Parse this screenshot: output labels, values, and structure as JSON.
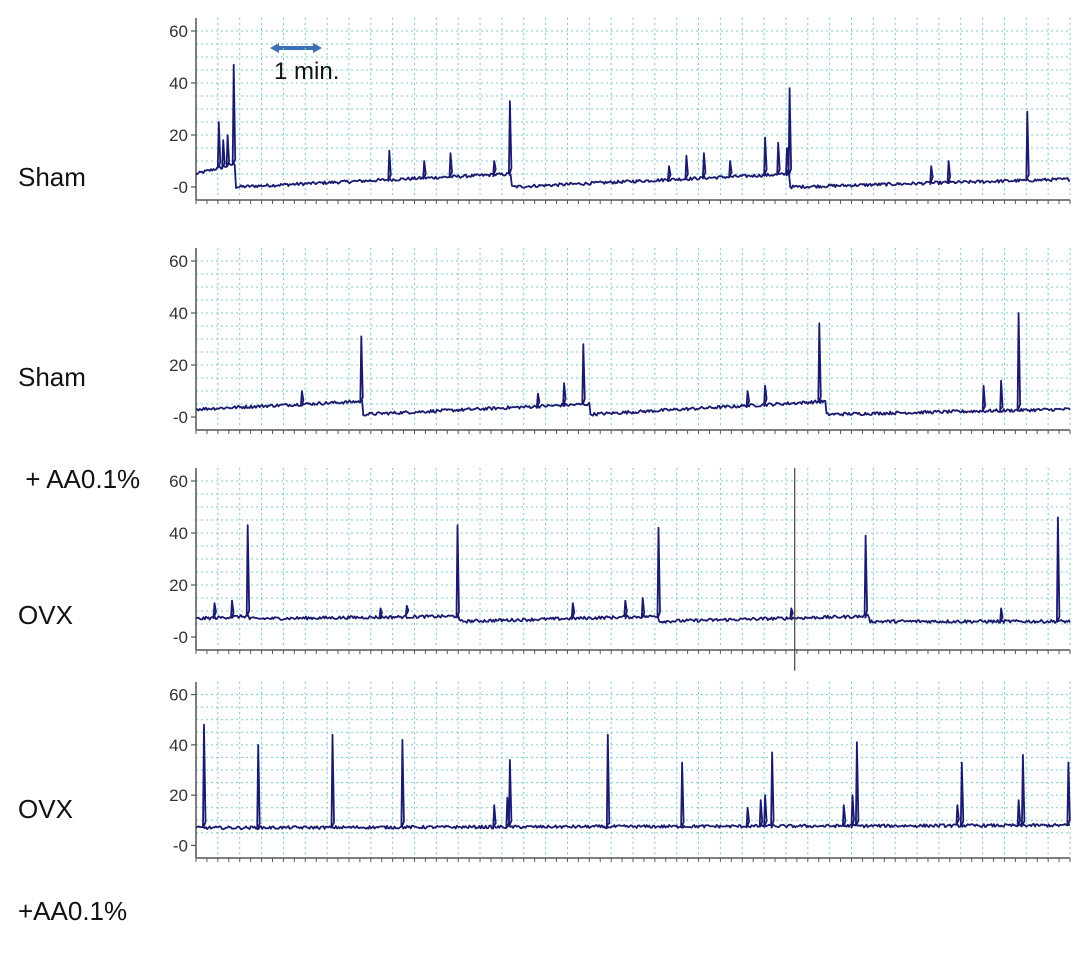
{
  "scale_bar": {
    "label": "1 min."
  },
  "colors": {
    "trace": "#1a1a6e",
    "grid": "#7cc8d0",
    "axis": "#555555",
    "scale_bar": "#3b6fb6"
  },
  "chart_data": [
    {
      "type": "line",
      "label_lines": [
        "Sham"
      ],
      "ylim": [
        -5,
        65
      ],
      "yticks": [
        60,
        40,
        20,
        0
      ],
      "ytick_labels": [
        "60",
        "40",
        "20",
        "-0"
      ],
      "grid": true,
      "baseline": 5,
      "x_end": 10,
      "segments": [
        [
          0,
          0.45,
          5,
          9
        ],
        [
          0.45,
          3.6,
          0,
          5
        ],
        [
          3.6,
          6.8,
          0,
          5
        ],
        [
          6.8,
          10,
          0,
          3
        ]
      ],
      "spikes": [
        [
          0.25,
          25
        ],
        [
          0.3,
          18
        ],
        [
          0.35,
          20
        ],
        [
          0.42,
          47
        ],
        [
          2.2,
          14
        ],
        [
          2.6,
          10
        ],
        [
          2.9,
          13
        ],
        [
          3.4,
          10
        ],
        [
          3.58,
          33
        ],
        [
          5.4,
          8
        ],
        [
          5.6,
          12
        ],
        [
          5.8,
          13
        ],
        [
          6.1,
          10
        ],
        [
          6.5,
          19
        ],
        [
          6.65,
          17
        ],
        [
          6.75,
          15
        ],
        [
          6.78,
          38
        ],
        [
          8.4,
          8
        ],
        [
          8.6,
          10
        ],
        [
          9.5,
          29
        ]
      ]
    },
    {
      "type": "line",
      "label_lines": [
        "Sham",
        " + AA0.1%"
      ],
      "ylim": [
        -5,
        65
      ],
      "yticks": [
        60,
        40,
        20,
        0
      ],
      "ytick_labels": [
        "60",
        "40",
        "20",
        "-0"
      ],
      "grid": true,
      "baseline": 3,
      "x_end": 10,
      "segments": [
        [
          0,
          1.9,
          3,
          6
        ],
        [
          1.9,
          4.5,
          1,
          5
        ],
        [
          4.5,
          7.2,
          1,
          6
        ],
        [
          7.2,
          10,
          1,
          3
        ]
      ],
      "spikes": [
        [
          1.2,
          10
        ],
        [
          1.88,
          31
        ],
        [
          3.9,
          9
        ],
        [
          4.2,
          13
        ],
        [
          4.42,
          28
        ],
        [
          6.3,
          10
        ],
        [
          6.5,
          12
        ],
        [
          7.12,
          36
        ],
        [
          9.0,
          12
        ],
        [
          9.2,
          14
        ],
        [
          9.4,
          40
        ]
      ]
    },
    {
      "type": "line",
      "label_lines": [
        "OVX"
      ],
      "ylim": [
        -5,
        65
      ],
      "yticks": [
        60,
        40,
        20,
        0
      ],
      "ytick_labels": [
        "60",
        "40",
        "20",
        "-0"
      ],
      "grid": true,
      "baseline": 7,
      "x_end": 10,
      "segments": [
        [
          0,
          0.6,
          7,
          8
        ],
        [
          0.6,
          3.0,
          7,
          8
        ],
        [
          3.0,
          5.3,
          6,
          8
        ],
        [
          5.3,
          7.7,
          6,
          8
        ],
        [
          7.7,
          10,
          6,
          6
        ]
      ],
      "spikes": [
        [
          0.2,
          13
        ],
        [
          0.4,
          14
        ],
        [
          0.58,
          43
        ],
        [
          2.1,
          11
        ],
        [
          2.4,
          12
        ],
        [
          2.98,
          43
        ],
        [
          4.3,
          13
        ],
        [
          4.9,
          14
        ],
        [
          5.1,
          15
        ],
        [
          5.28,
          42
        ],
        [
          6.8,
          11
        ],
        [
          7.65,
          39
        ],
        [
          9.2,
          11
        ],
        [
          9.85,
          46
        ]
      ],
      "artifact": {
        "x": 6.85,
        "top": 65,
        "bottom": -13
      }
    },
    {
      "type": "line",
      "label_lines": [
        "OVX",
        "+AA0.1%"
      ],
      "ylim": [
        -5,
        65
      ],
      "yticks": [
        60,
        40,
        20,
        0
      ],
      "ytick_labels": [
        "60",
        "40",
        "20",
        "-0"
      ],
      "grid": true,
      "baseline": 8,
      "x_end": 10,
      "segments": [
        [
          0,
          10,
          7,
          8
        ]
      ],
      "spikes": [
        [
          0.08,
          48
        ],
        [
          0.7,
          40
        ],
        [
          1.55,
          44
        ],
        [
          2.35,
          42
        ],
        [
          3.4,
          16
        ],
        [
          3.55,
          19
        ],
        [
          3.58,
          34
        ],
        [
          4.7,
          44
        ],
        [
          5.55,
          33
        ],
        [
          6.3,
          15
        ],
        [
          6.45,
          18
        ],
        [
          6.5,
          20
        ],
        [
          6.58,
          37
        ],
        [
          7.4,
          16
        ],
        [
          7.5,
          20
        ],
        [
          7.55,
          41
        ],
        [
          8.7,
          16
        ],
        [
          8.75,
          33
        ],
        [
          9.4,
          18
        ],
        [
          9.45,
          36
        ],
        [
          9.97,
          33
        ]
      ]
    }
  ]
}
